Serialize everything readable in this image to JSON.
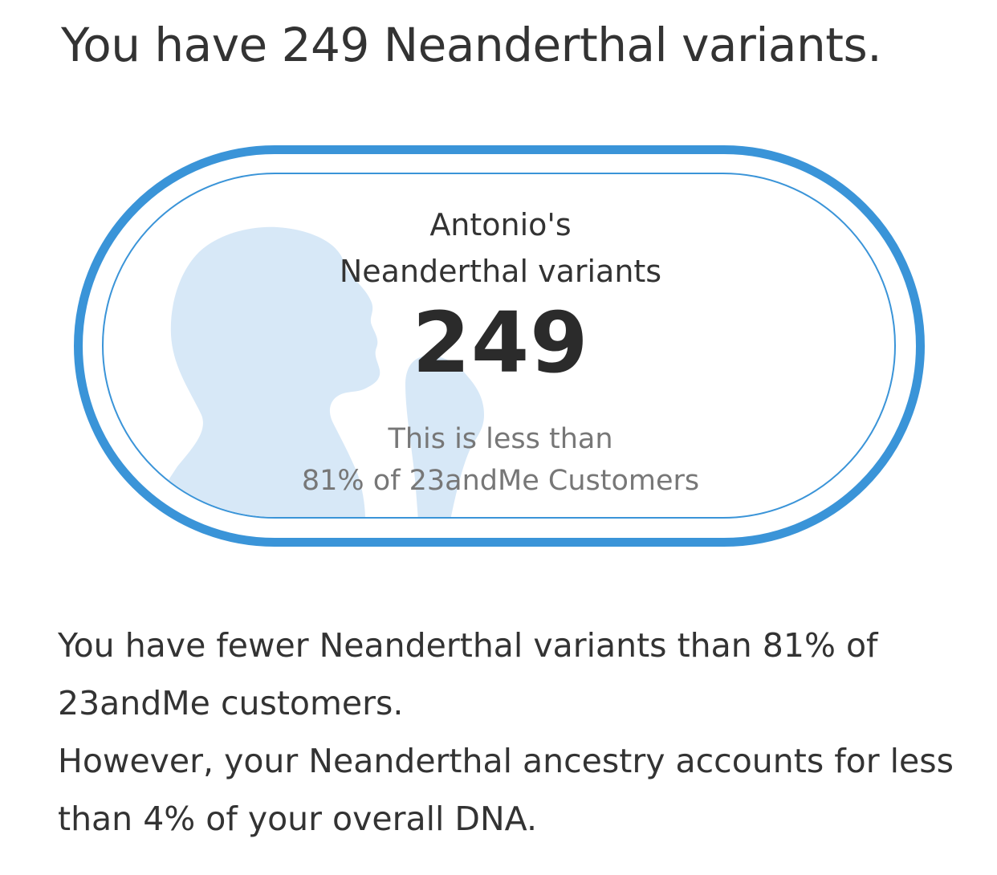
{
  "header": {
    "title": "You have 249 Neanderthal variants."
  },
  "card": {
    "owner_line1": "Antonio's",
    "owner_line2": "Neanderthal variants",
    "count": "249",
    "comparison_line1": "This is less than",
    "comparison_line2": "81% of 23andMe Customers",
    "accent_color": "#3a94d8",
    "silhouette_color": "#d7e8f7",
    "silhouette_icon": "neanderthal-profile-silhouette"
  },
  "description": {
    "paragraph1": "You have fewer Neanderthal variants than 81% of 23andMe customers.",
    "paragraph2": "However, your Neanderthal ancestry accounts for less than 4% of your overall DNA."
  }
}
